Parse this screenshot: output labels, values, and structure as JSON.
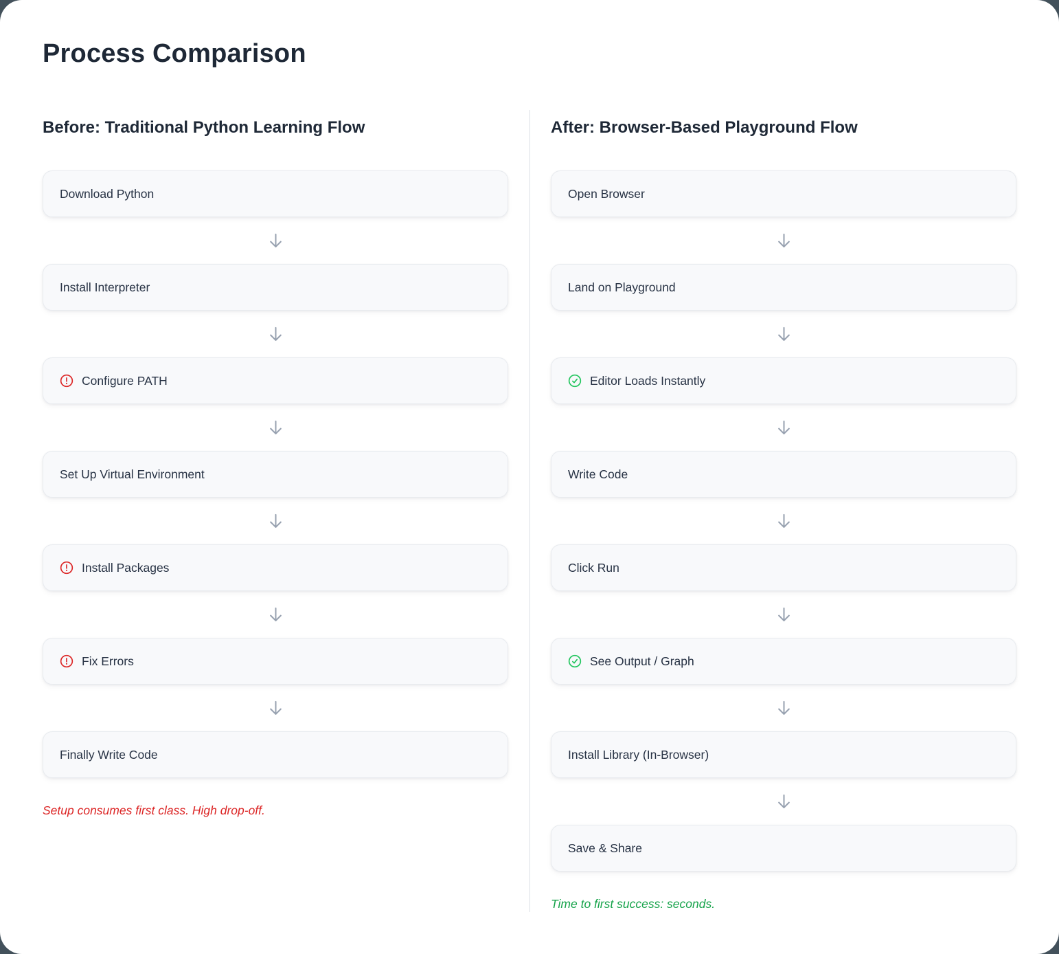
{
  "page": {
    "title": "Process Comparison"
  },
  "colors": {
    "negative": "#dc2626",
    "positive_text": "#16a34a",
    "positive_icon": "#22c55e",
    "arrow": "#97a1b0",
    "heading_text": "#1e2836",
    "step_text": "#273244"
  },
  "comparison": {
    "columns": [
      {
        "id": "before",
        "heading": "Before: Traditional Python Learning Flow",
        "steps": [
          {
            "label": "Download Python",
            "icon": "none"
          },
          {
            "label": "Install Interpreter",
            "icon": "none"
          },
          {
            "label": "Configure PATH",
            "icon": "alert-circle-icon"
          },
          {
            "label": "Set Up Virtual Environment",
            "icon": "none"
          },
          {
            "label": "Install Packages",
            "icon": "alert-circle-icon"
          },
          {
            "label": "Fix Errors",
            "icon": "alert-circle-icon"
          },
          {
            "label": "Finally Write Code",
            "icon": "none"
          }
        ],
        "note": {
          "text": "Setup consumes first class. High drop-off.",
          "tone": "negative"
        }
      },
      {
        "id": "after",
        "heading": "After: Browser-Based Playground Flow",
        "steps": [
          {
            "label": "Open Browser",
            "icon": "none"
          },
          {
            "label": "Land on Playground",
            "icon": "none"
          },
          {
            "label": "Editor Loads Instantly",
            "icon": "check-circle-icon"
          },
          {
            "label": "Write Code",
            "icon": "none"
          },
          {
            "label": "Click Run",
            "icon": "none"
          },
          {
            "label": "See Output / Graph",
            "icon": "check-circle-icon"
          },
          {
            "label": "Install Library (In-Browser)",
            "icon": "none"
          },
          {
            "label": "Save & Share",
            "icon": "none"
          }
        ],
        "note": {
          "text": "Time to first success: seconds.",
          "tone": "positive"
        }
      }
    ]
  }
}
